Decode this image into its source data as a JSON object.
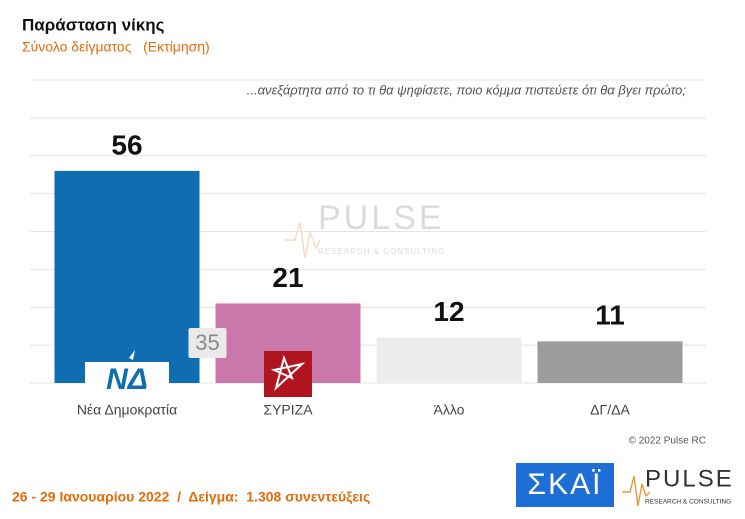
{
  "chart_data": {
    "type": "bar",
    "title": "Παράσταση νίκης",
    "subtitle": "Σύνολο δείγματος   (Εκτίμηση)",
    "question": "...ανεξάρτητα από το τι θα ψηφίσετε, ποιο κόμμα πιστεύετε ότι θα βγει πρώτο;",
    "categories": [
      "Νέα Δημοκρατία",
      "ΣΥΡΙΖΑ",
      "Άλλο",
      "ΔΓ/ΔΑ"
    ],
    "values": [
      56,
      21,
      12,
      11
    ],
    "colors": [
      "#0f6eb2",
      "#c978a9",
      "#ececec",
      "#9c9c9c"
    ],
    "lead": 35,
    "ylim": [
      0,
      80
    ],
    "yticks": [
      0,
      10,
      20,
      30,
      40,
      50,
      60,
      70,
      80
    ],
    "grid": true,
    "copyright": "© 2022 Pulse RC",
    "footer": "26 - 29 Ιανουαρίου 2022  /  Δείγμα:  1.308 συνεντεύξεις",
    "logos": {
      "nd": "ΝΔ",
      "skai": "ΣΚΑΪ",
      "pulse": "PULSE",
      "pulse_sub": "RESEARCH & CONSULTING"
    }
  }
}
